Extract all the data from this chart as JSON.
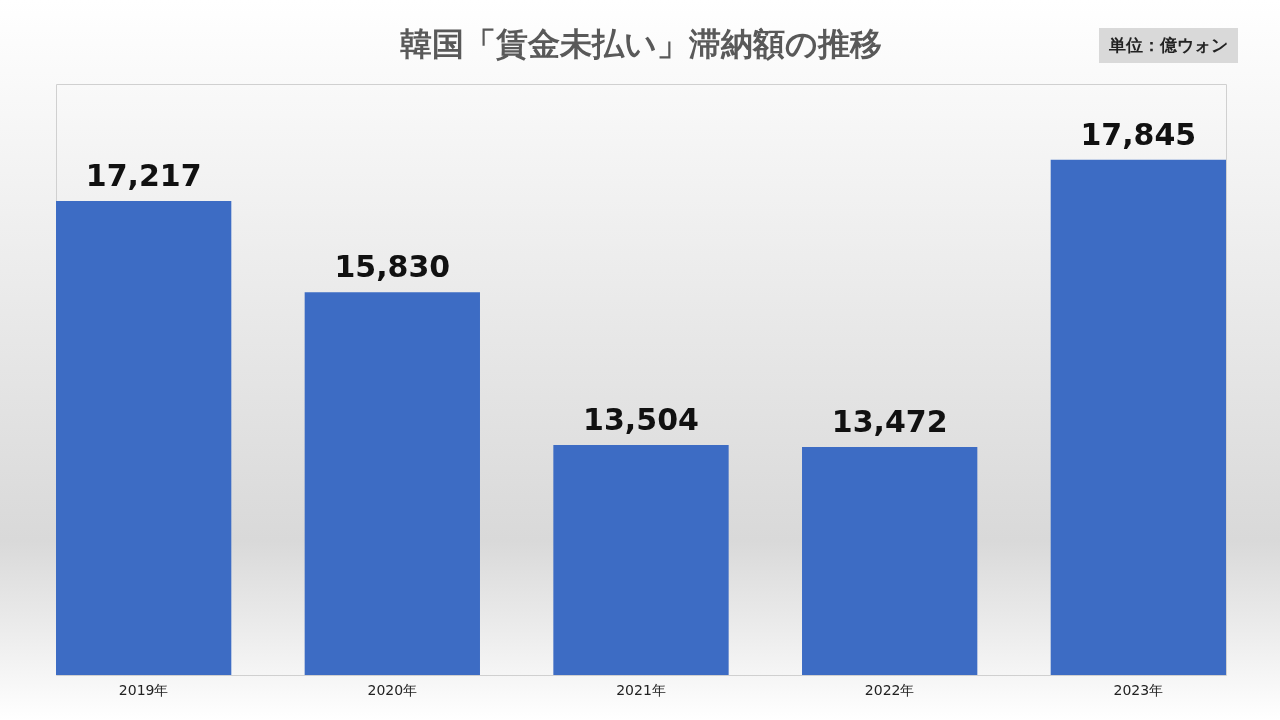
{
  "chart_data": {
    "type": "bar",
    "title": "韓国「賃金未払い」滞納額の推移",
    "categories": [
      "2019年",
      "2020年",
      "2021年",
      "2022年",
      "2023年"
    ],
    "values": [
      17217,
      15830,
      13504,
      13472,
      17845
    ],
    "color": "#3d6cc4",
    "ylim": [
      10000,
      19000
    ],
    "value_labels": [
      "17,217",
      "15,830",
      "13,504",
      "13,472",
      "17,845"
    ],
    "tick_labels": "x",
    "grid": false,
    "annotations": [
      "単位：億ウォン"
    ]
  }
}
